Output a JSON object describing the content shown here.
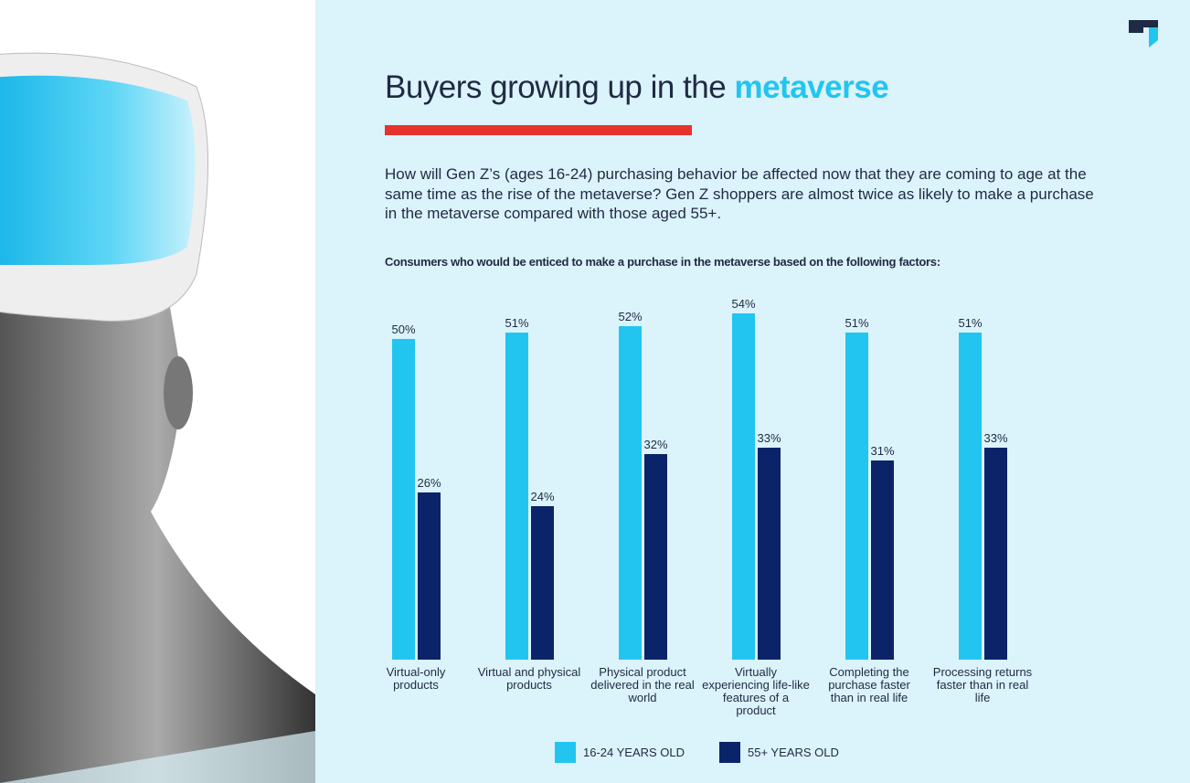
{
  "chart_data": {
    "type": "bar",
    "title": "Buyers growing up in the",
    "title_highlight": "metaverse",
    "intro": "How will Gen Z’s (ages 16-24) purchasing behavior be affected now that they are coming to age at the same time as the rise of the metaverse? Gen Z shoppers are almost twice as likely to make a purchase in the metaverse compared with those aged 55+.",
    "subtitle": "Consumers who would be enticed to make a purchase in the metaverse based on the following factors:",
    "categories": [
      "Virtual-only products",
      "Virtual and physical products",
      "Physical product delivered in the real world",
      "Virtually experiencing life-like features of a product",
      "Completing the purchase faster than in real life",
      "Processing returns faster than in real life"
    ],
    "series": [
      {
        "name": "16-24 YEARS OLD",
        "color": "#22c5f0",
        "values": [
          50,
          51,
          52,
          54,
          51,
          51
        ],
        "value_labels": [
          "50%",
          "51%",
          "52%",
          "54%",
          "51%",
          "51%"
        ]
      },
      {
        "name": "55+ YEARS OLD",
        "color": "#0b2369",
        "values": [
          26,
          24,
          32,
          33,
          31,
          33
        ],
        "value_labels": [
          "26%",
          "24%",
          "32%",
          "33%",
          "31%",
          "33%"
        ]
      }
    ]
  }
}
